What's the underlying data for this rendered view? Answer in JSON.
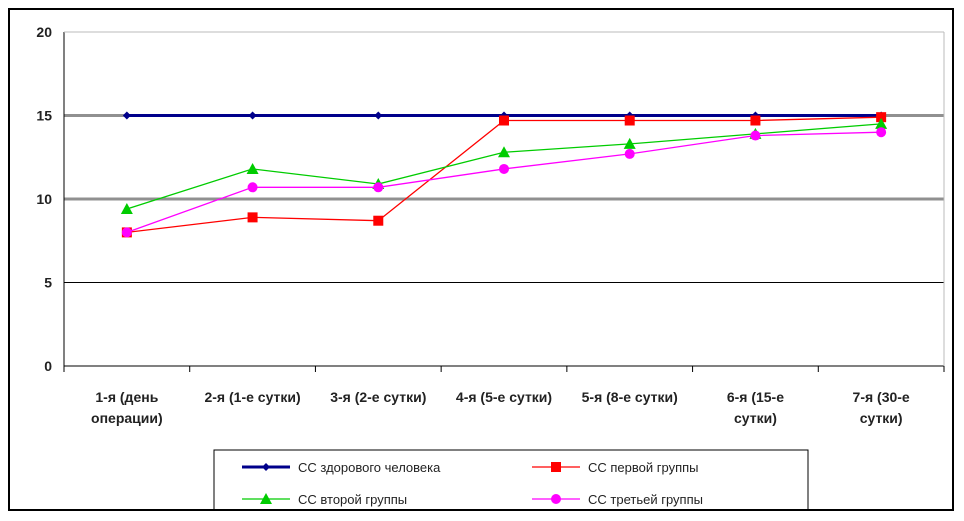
{
  "chart_data": {
    "type": "line",
    "title": "",
    "xlabel": "",
    "ylabel": "",
    "ylim": [
      0,
      20
    ],
    "yticks": [
      "0",
      "5",
      "10",
      "15",
      "20"
    ],
    "categories": [
      [
        "1-я (день",
        "операции)"
      ],
      [
        "2-я (1-е сутки)"
      ],
      [
        "3-я (2-е сутки)"
      ],
      [
        "4-я (5-е сутки)"
      ],
      [
        "5-я (8-е сутки)"
      ],
      [
        "6-я (15-е",
        "сутки)"
      ],
      [
        "7-я (30-е",
        "сутки)"
      ]
    ],
    "grid": "horizontal",
    "legend_position": "bottom",
    "series": [
      {
        "name": "СС здорового человека",
        "color": "#00008b",
        "marker": "diamond",
        "values": [
          15,
          15,
          15,
          15,
          15,
          15,
          15
        ]
      },
      {
        "name": "СС первой группы",
        "color": "#ff0000",
        "marker": "square",
        "values": [
          8.0,
          8.9,
          8.7,
          14.7,
          14.7,
          14.7,
          14.9
        ]
      },
      {
        "name": "СС второй группы",
        "color": "#00cc00",
        "marker": "triangle",
        "values": [
          9.4,
          11.8,
          10.9,
          12.8,
          13.3,
          13.9,
          14.5
        ]
      },
      {
        "name": "СС третьей группы",
        "color": "#ff00ff",
        "marker": "circle",
        "values": [
          8.0,
          10.7,
          10.7,
          11.8,
          12.7,
          13.8,
          14.0
        ]
      }
    ]
  }
}
